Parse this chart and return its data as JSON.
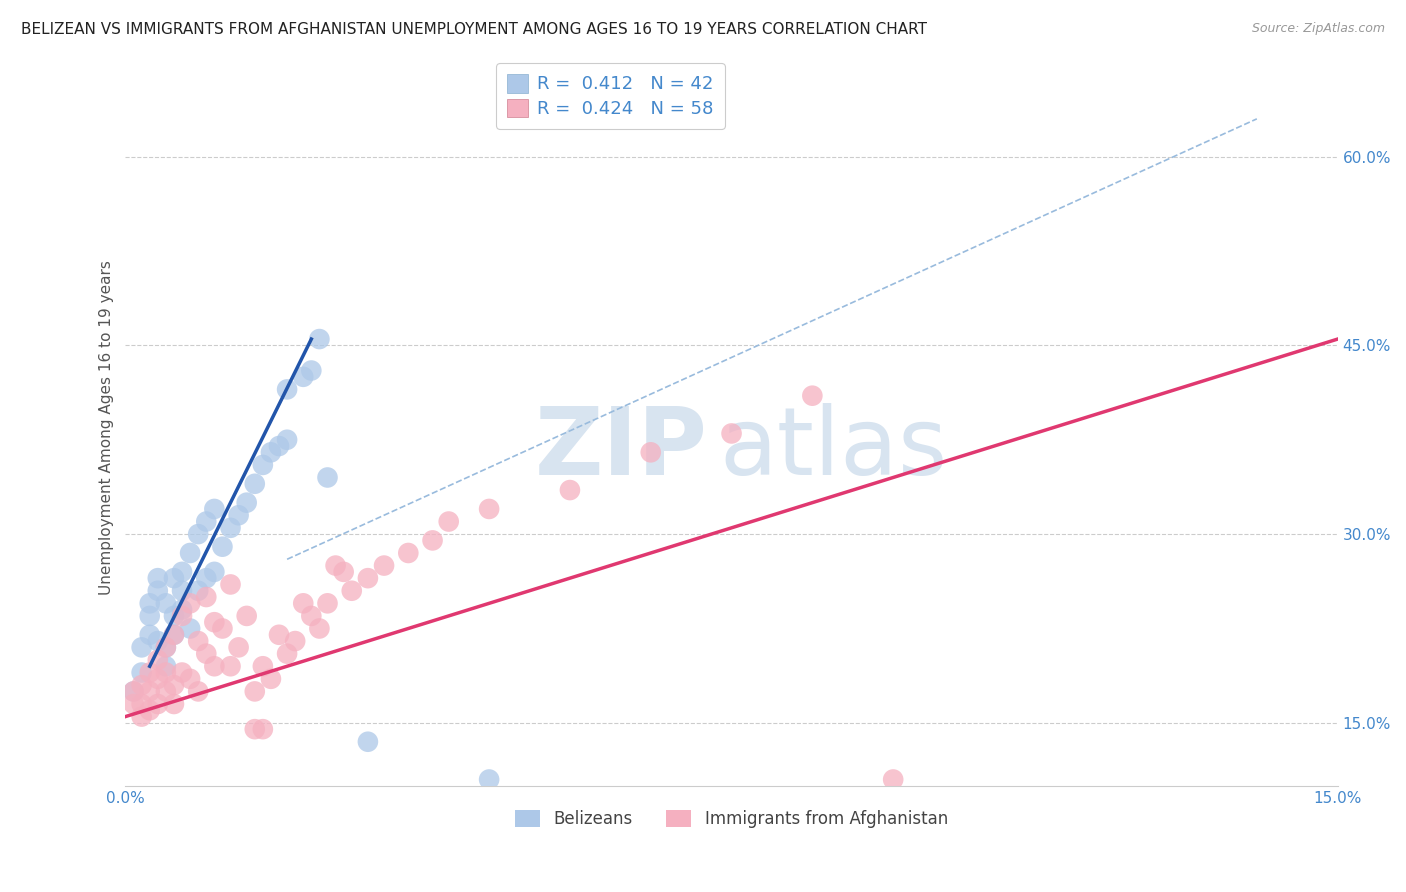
{
  "title": "BELIZEAN VS IMMIGRANTS FROM AFGHANISTAN UNEMPLOYMENT AMONG AGES 16 TO 19 YEARS CORRELATION CHART",
  "source": "Source: ZipAtlas.com",
  "ylabel": "Unemployment Among Ages 16 to 19 years",
  "xlim": [
    0.0,
    0.15
  ],
  "ylim": [
    0.1,
    0.67
  ],
  "xticks": [
    0.0,
    0.05,
    0.1,
    0.15
  ],
  "xticklabels": [
    "0.0%",
    "",
    "",
    "15.0%"
  ],
  "yticks": [
    0.15,
    0.3,
    0.45,
    0.6
  ],
  "yticklabels": [
    "15.0%",
    "30.0%",
    "45.0%",
    "60.0%"
  ],
  "legend_R1": "R =  0.412",
  "legend_N1": "N = 42",
  "legend_R2": "R =  0.424",
  "legend_N2": "N = 58",
  "legend_label1": "Belizeans",
  "legend_label2": "Immigrants from Afghanistan",
  "blue_color": "#adc8e8",
  "pink_color": "#f5b0c0",
  "blue_line_color": "#2255aa",
  "pink_line_color": "#e03870",
  "blue_scatter": [
    [
      0.001,
      0.175
    ],
    [
      0.002,
      0.19
    ],
    [
      0.002,
      0.21
    ],
    [
      0.003,
      0.22
    ],
    [
      0.003,
      0.235
    ],
    [
      0.003,
      0.245
    ],
    [
      0.004,
      0.215
    ],
    [
      0.004,
      0.255
    ],
    [
      0.004,
      0.265
    ],
    [
      0.005,
      0.195
    ],
    [
      0.005,
      0.21
    ],
    [
      0.005,
      0.245
    ],
    [
      0.006,
      0.22
    ],
    [
      0.006,
      0.235
    ],
    [
      0.006,
      0.265
    ],
    [
      0.007,
      0.24
    ],
    [
      0.007,
      0.255
    ],
    [
      0.007,
      0.27
    ],
    [
      0.008,
      0.225
    ],
    [
      0.008,
      0.285
    ],
    [
      0.009,
      0.255
    ],
    [
      0.009,
      0.3
    ],
    [
      0.01,
      0.265
    ],
    [
      0.01,
      0.31
    ],
    [
      0.011,
      0.27
    ],
    [
      0.011,
      0.32
    ],
    [
      0.012,
      0.29
    ],
    [
      0.013,
      0.305
    ],
    [
      0.014,
      0.315
    ],
    [
      0.015,
      0.325
    ],
    [
      0.016,
      0.34
    ],
    [
      0.017,
      0.355
    ],
    [
      0.018,
      0.365
    ],
    [
      0.019,
      0.37
    ],
    [
      0.02,
      0.375
    ],
    [
      0.02,
      0.415
    ],
    [
      0.022,
      0.425
    ],
    [
      0.023,
      0.43
    ],
    [
      0.024,
      0.455
    ],
    [
      0.025,
      0.345
    ],
    [
      0.03,
      0.135
    ],
    [
      0.045,
      0.105
    ]
  ],
  "pink_scatter": [
    [
      0.001,
      0.165
    ],
    [
      0.001,
      0.175
    ],
    [
      0.002,
      0.155
    ],
    [
      0.002,
      0.165
    ],
    [
      0.002,
      0.18
    ],
    [
      0.003,
      0.16
    ],
    [
      0.003,
      0.175
    ],
    [
      0.003,
      0.19
    ],
    [
      0.004,
      0.165
    ],
    [
      0.004,
      0.185
    ],
    [
      0.004,
      0.2
    ],
    [
      0.005,
      0.175
    ],
    [
      0.005,
      0.19
    ],
    [
      0.005,
      0.21
    ],
    [
      0.006,
      0.165
    ],
    [
      0.006,
      0.18
    ],
    [
      0.006,
      0.22
    ],
    [
      0.007,
      0.19
    ],
    [
      0.007,
      0.235
    ],
    [
      0.008,
      0.185
    ],
    [
      0.008,
      0.245
    ],
    [
      0.009,
      0.175
    ],
    [
      0.009,
      0.215
    ],
    [
      0.01,
      0.205
    ],
    [
      0.01,
      0.25
    ],
    [
      0.011,
      0.195
    ],
    [
      0.011,
      0.23
    ],
    [
      0.012,
      0.225
    ],
    [
      0.013,
      0.195
    ],
    [
      0.013,
      0.26
    ],
    [
      0.014,
      0.21
    ],
    [
      0.015,
      0.235
    ],
    [
      0.016,
      0.145
    ],
    [
      0.016,
      0.175
    ],
    [
      0.017,
      0.145
    ],
    [
      0.017,
      0.195
    ],
    [
      0.018,
      0.185
    ],
    [
      0.019,
      0.22
    ],
    [
      0.02,
      0.205
    ],
    [
      0.021,
      0.215
    ],
    [
      0.022,
      0.245
    ],
    [
      0.023,
      0.235
    ],
    [
      0.024,
      0.225
    ],
    [
      0.025,
      0.245
    ],
    [
      0.026,
      0.275
    ],
    [
      0.027,
      0.27
    ],
    [
      0.028,
      0.255
    ],
    [
      0.03,
      0.265
    ],
    [
      0.032,
      0.275
    ],
    [
      0.035,
      0.285
    ],
    [
      0.038,
      0.295
    ],
    [
      0.04,
      0.31
    ],
    [
      0.045,
      0.32
    ],
    [
      0.055,
      0.335
    ],
    [
      0.065,
      0.365
    ],
    [
      0.075,
      0.38
    ],
    [
      0.085,
      0.41
    ],
    [
      0.095,
      0.105
    ]
  ],
  "watermark_zip": "ZIP",
  "watermark_atlas": "atlas",
  "watermark_color": "#d8e4f0",
  "background_color": "#ffffff",
  "grid_color": "#cccccc",
  "tick_color": "#4488cc",
  "title_color": "#222222",
  "title_fontsize": 11,
  "axis_label_color": "#555555",
  "axis_label_fontsize": 11,
  "blue_line_x": [
    0.003,
    0.023
  ],
  "blue_line_y": [
    0.195,
    0.455
  ],
  "pink_line_x": [
    0.0,
    0.15
  ],
  "pink_line_y": [
    0.155,
    0.455
  ]
}
